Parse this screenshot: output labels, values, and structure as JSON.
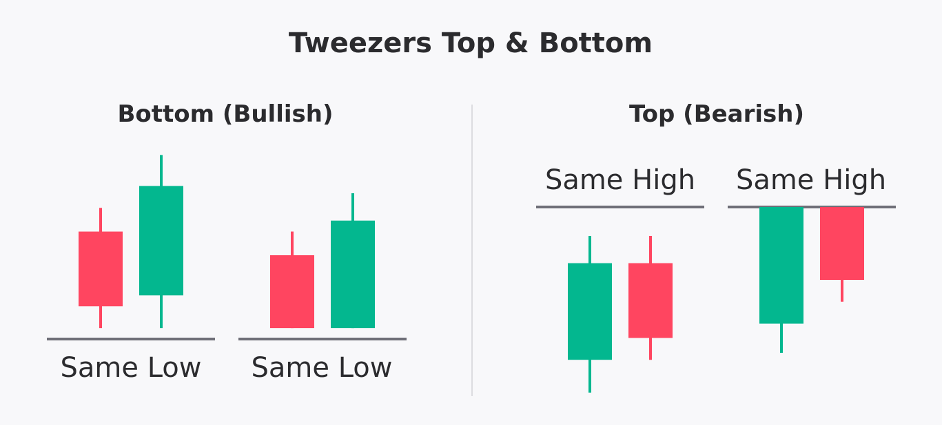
{
  "title": "Tweezers Top & Bottom",
  "colors": {
    "bullish": "#03b78f",
    "bearish": "#ff4560",
    "level_line": "#6f6f78",
    "divider": "#dcdce0",
    "text": "#2b2b2e",
    "background": "#f8f8fa"
  },
  "sections": [
    {
      "heading": "Bottom (Bullish)",
      "groups": [
        {
          "label": "Same Low",
          "level": "low",
          "candles": [
            {
              "color": "bearish",
              "high": 3.6,
              "open": 2.95,
              "close": 0.9,
              "low": 0.3
            },
            {
              "color": "bullish",
              "high": 5.05,
              "open": 1.2,
              "close": 4.2,
              "low": 0.3
            }
          ]
        },
        {
          "label": "Same Low",
          "level": "low",
          "candles": [
            {
              "color": "bearish",
              "high": 2.95,
              "open": 2.3,
              "close": 0.3,
              "low": 0.3
            },
            {
              "color": "bullish",
              "high": 4.0,
              "open": 0.3,
              "close": 3.25,
              "low": 0.3
            }
          ]
        }
      ]
    },
    {
      "heading": "Top (Bearish)",
      "groups": [
        {
          "label": "Same High",
          "level": "high",
          "candles": [
            {
              "color": "bullish",
              "high": 4.0,
              "open": 0.6,
              "close": 3.25,
              "low": -0.3
            },
            {
              "color": "bearish",
              "high": 4.0,
              "open": 3.25,
              "close": 1.2,
              "low": 0.6
            }
          ]
        },
        {
          "label": "Same High",
          "level": "high",
          "candles": [
            {
              "color": "bullish",
              "high": 4.0,
              "open": 0.8,
              "close": 4.0,
              "low": 0.0
            },
            {
              "color": "bearish",
              "high": 4.0,
              "open": 4.0,
              "close": 2.0,
              "low": 1.4
            }
          ]
        }
      ]
    }
  ]
}
